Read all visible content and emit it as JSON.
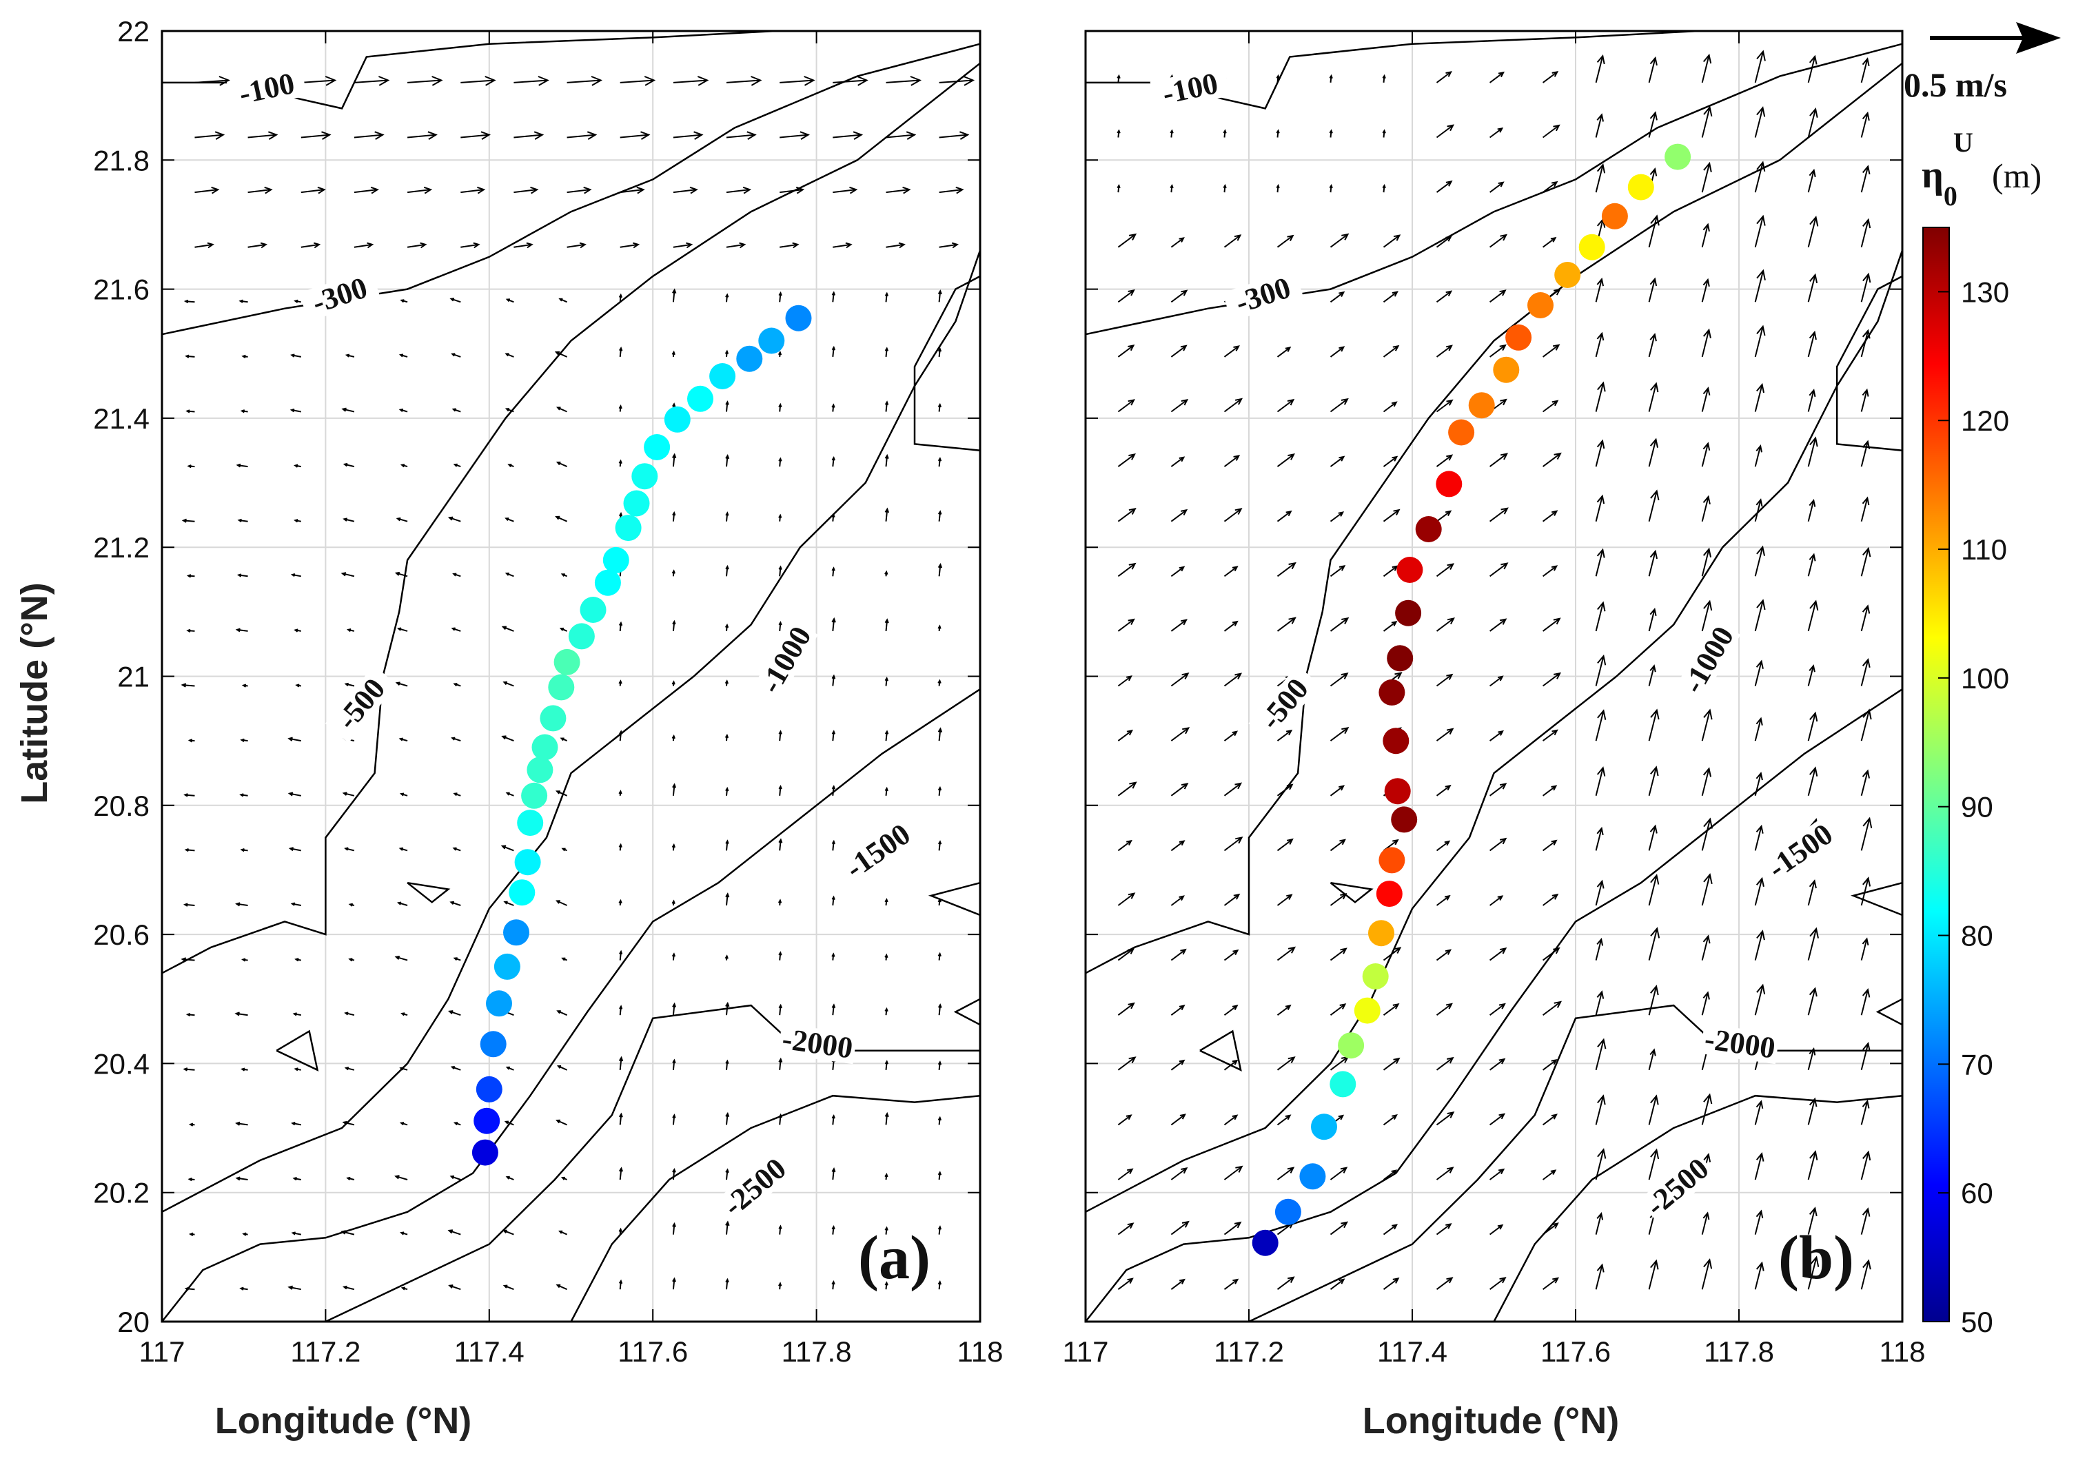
{
  "chart_data": [
    {
      "type": "scatter",
      "panel_label": "(a)",
      "xlabel": "Longitude (°N)",
      "ylabel": "Latitude (°N)",
      "xlim": [
        117,
        118
      ],
      "ylim": [
        20,
        22
      ],
      "xticks": [
        "117",
        "117.2",
        "117.4",
        "117.6",
        "117.8",
        "118"
      ],
      "yticks": [
        "20",
        "20.2",
        "20.4",
        "20.6",
        "20.8",
        "21",
        "21.2",
        "21.4",
        "21.6",
        "21.8",
        "22"
      ],
      "grid": true,
      "contour_labels": [
        "-100",
        "-300",
        "-500",
        "-1000",
        "-1500",
        "-2000",
        "-2500"
      ],
      "points": [
        {
          "lon": 117.395,
          "lat": 20.262,
          "eta": 58
        },
        {
          "lon": 117.397,
          "lat": 20.311,
          "eta": 62
        },
        {
          "lon": 117.4,
          "lat": 20.36,
          "eta": 66
        },
        {
          "lon": 117.405,
          "lat": 20.43,
          "eta": 71
        },
        {
          "lon": 117.412,
          "lat": 20.493,
          "eta": 74
        },
        {
          "lon": 117.422,
          "lat": 20.55,
          "eta": 76
        },
        {
          "lon": 117.433,
          "lat": 20.603,
          "eta": 73
        },
        {
          "lon": 117.44,
          "lat": 20.665,
          "eta": 82
        },
        {
          "lon": 117.447,
          "lat": 20.712,
          "eta": 81
        },
        {
          "lon": 117.45,
          "lat": 20.773,
          "eta": 83
        },
        {
          "lon": 117.455,
          "lat": 20.815,
          "eta": 86
        },
        {
          "lon": 117.462,
          "lat": 20.855,
          "eta": 86
        },
        {
          "lon": 117.468,
          "lat": 20.89,
          "eta": 86
        },
        {
          "lon": 117.478,
          "lat": 20.935,
          "eta": 86
        },
        {
          "lon": 117.488,
          "lat": 20.983,
          "eta": 87
        },
        {
          "lon": 117.495,
          "lat": 21.022,
          "eta": 88
        },
        {
          "lon": 117.513,
          "lat": 21.062,
          "eta": 85
        },
        {
          "lon": 117.527,
          "lat": 21.103,
          "eta": 84
        },
        {
          "lon": 117.545,
          "lat": 21.145,
          "eta": 82
        },
        {
          "lon": 117.555,
          "lat": 21.18,
          "eta": 82
        },
        {
          "lon": 117.57,
          "lat": 21.23,
          "eta": 83
        },
        {
          "lon": 117.58,
          "lat": 21.268,
          "eta": 83
        },
        {
          "lon": 117.59,
          "lat": 21.31,
          "eta": 83
        },
        {
          "lon": 117.605,
          "lat": 21.355,
          "eta": 82
        },
        {
          "lon": 117.63,
          "lat": 21.398,
          "eta": 81
        },
        {
          "lon": 117.658,
          "lat": 21.43,
          "eta": 82
        },
        {
          "lon": 117.685,
          "lat": 21.465,
          "eta": 80
        },
        {
          "lon": 117.718,
          "lat": 21.492,
          "eta": 74
        },
        {
          "lon": 117.745,
          "lat": 21.52,
          "eta": 75
        },
        {
          "lon": 117.778,
          "lat": 21.555,
          "eta": 72
        }
      ]
    },
    {
      "type": "scatter",
      "panel_label": "(b)",
      "xlabel": "Longitude (°N)",
      "ylabel": "",
      "xlim": [
        117,
        118
      ],
      "ylim": [
        20,
        22
      ],
      "xticks": [
        "117",
        "117.2",
        "117.4",
        "117.6",
        "117.8",
        "118"
      ],
      "grid": true,
      "contour_labels": [
        "-100",
        "-300",
        "-500",
        "-1000",
        "-1500",
        "-2000",
        "-2500"
      ],
      "points": [
        {
          "lon": 117.22,
          "lat": 20.122,
          "eta": 55
        },
        {
          "lon": 117.248,
          "lat": 20.17,
          "eta": 70
        },
        {
          "lon": 117.278,
          "lat": 20.225,
          "eta": 72
        },
        {
          "lon": 117.292,
          "lat": 20.302,
          "eta": 76
        },
        {
          "lon": 117.315,
          "lat": 20.368,
          "eta": 84
        },
        {
          "lon": 117.325,
          "lat": 20.428,
          "eta": 95
        },
        {
          "lon": 117.345,
          "lat": 20.482,
          "eta": 102
        },
        {
          "lon": 117.355,
          "lat": 20.535,
          "eta": 98
        },
        {
          "lon": 117.362,
          "lat": 20.602,
          "eta": 110
        },
        {
          "lon": 117.372,
          "lat": 20.663,
          "eta": 124
        },
        {
          "lon": 117.375,
          "lat": 20.715,
          "eta": 118
        },
        {
          "lon": 117.39,
          "lat": 20.778,
          "eta": 134
        },
        {
          "lon": 117.382,
          "lat": 20.822,
          "eta": 130
        },
        {
          "lon": 117.38,
          "lat": 20.9,
          "eta": 133
        },
        {
          "lon": 117.375,
          "lat": 20.975,
          "eta": 134
        },
        {
          "lon": 117.385,
          "lat": 21.028,
          "eta": 135
        },
        {
          "lon": 117.395,
          "lat": 21.098,
          "eta": 135
        },
        {
          "lon": 117.397,
          "lat": 21.165,
          "eta": 127
        },
        {
          "lon": 117.42,
          "lat": 21.228,
          "eta": 133
        },
        {
          "lon": 117.445,
          "lat": 21.298,
          "eta": 125
        },
        {
          "lon": 117.46,
          "lat": 21.378,
          "eta": 116
        },
        {
          "lon": 117.485,
          "lat": 21.42,
          "eta": 114
        },
        {
          "lon": 117.515,
          "lat": 21.475,
          "eta": 112
        },
        {
          "lon": 117.53,
          "lat": 21.525,
          "eta": 117
        },
        {
          "lon": 117.557,
          "lat": 21.575,
          "eta": 114
        },
        {
          "lon": 117.59,
          "lat": 21.622,
          "eta": 110
        },
        {
          "lon": 117.62,
          "lat": 21.665,
          "eta": 104
        },
        {
          "lon": 117.648,
          "lat": 21.713,
          "eta": 115
        },
        {
          "lon": 117.68,
          "lat": 21.758,
          "eta": 104
        },
        {
          "lon": 117.725,
          "lat": 21.805,
          "eta": 94
        }
      ]
    }
  ],
  "reference_vector": {
    "label": "0.5 m/s"
  },
  "colorbar": {
    "title": "η",
    "title_sub": "0",
    "title_sup": "U",
    "unit": "(m)",
    "min": 50,
    "max": 135,
    "ticks": [
      "50",
      "60",
      "70",
      "80",
      "90",
      "100",
      "110",
      "120",
      "130"
    ]
  }
}
